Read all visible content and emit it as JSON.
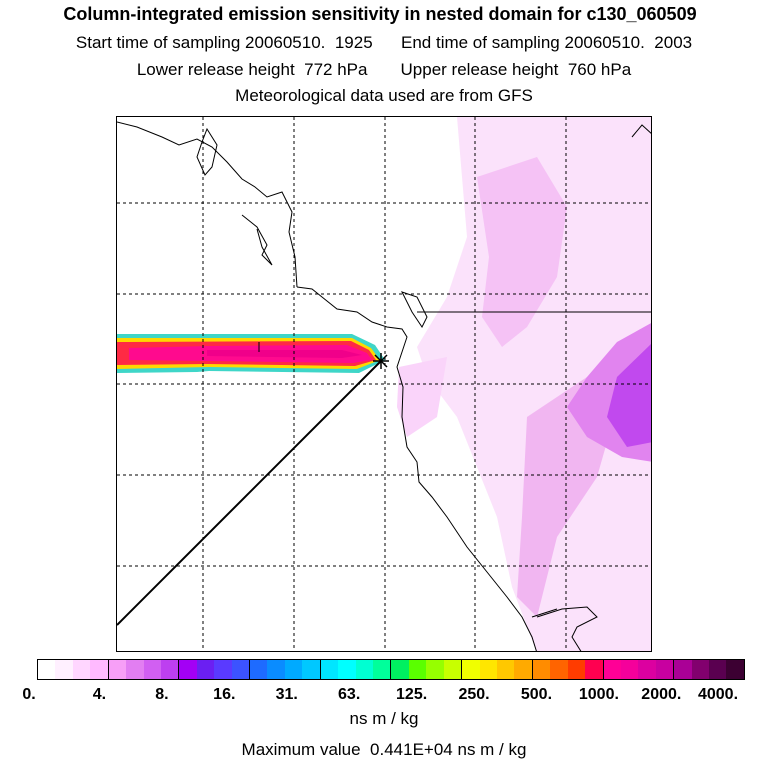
{
  "header": {
    "title": "Column-integrated emission sensitivity in nested domain for c130_060509",
    "start_time_label": "Start time of sampling",
    "start_time": "20060510.  1925",
    "end_time_label": "End time of sampling",
    "end_time": "20060510.  2003",
    "lower_height_label": "Lower release height",
    "lower_height": "772 hPa",
    "upper_height_label": "Upper release height",
    "upper_height": "760 hPa",
    "met_data": "Meteorological data used are from GFS"
  },
  "legend": {
    "colors": [
      "#ffffff",
      "#fff0ff",
      "#ffd6ff",
      "#ffbaff",
      "#f79ff7",
      "#e27ef2",
      "#d15ff2",
      "#bd3ff0",
      "#a300f5",
      "#6b1ff2",
      "#5a3aff",
      "#3c53ff",
      "#1e6bff",
      "#0a8cff",
      "#00aaff",
      "#00c8ff",
      "#00e6ff",
      "#00ffff",
      "#00ffd2",
      "#00ff9b",
      "#00f060",
      "#5aff00",
      "#96ff00",
      "#c8ff00",
      "#f0ff00",
      "#ffe600",
      "#ffc800",
      "#ffaa00",
      "#ff8c00",
      "#ff6400",
      "#ff3c00",
      "#ff0050",
      "#ff0096",
      "#f5009b",
      "#dc00a0",
      "#c800a0",
      "#aa0096",
      "#82006e",
      "#5a0050",
      "#3c0032"
    ],
    "tick_labels": [
      "0.",
      "4.",
      "8.",
      "16.",
      "31.",
      "63.",
      "125.",
      "250.",
      "500.",
      "1000.",
      "2000.",
      "4000."
    ],
    "units": "ns m / kg"
  },
  "footer": {
    "max_label": "Maximum value",
    "max_value": "0.441E+04 ns m / kg"
  }
}
